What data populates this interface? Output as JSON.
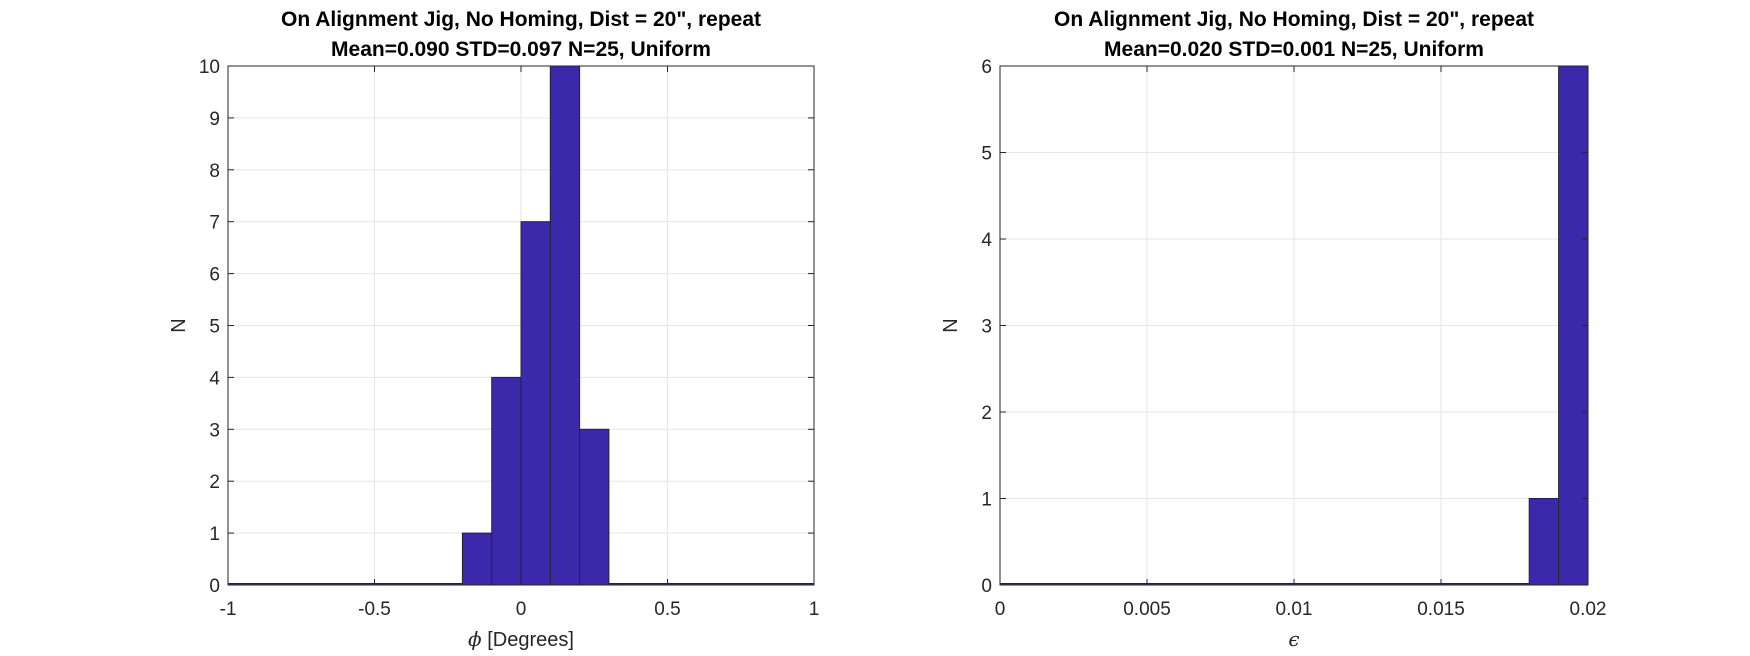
{
  "chart_data": [
    {
      "type": "histogram",
      "title": "On Alignment Jig, No Homing, Dist = 20\", repeat",
      "subtitle": "Mean=0.090 STD=0.097 N=25, Uniform",
      "xlabel_symbol": "ϕ",
      "xlabel_rest": " [Degrees]",
      "ylabel": "N",
      "xlim": [
        -1,
        1
      ],
      "ylim": [
        0,
        10
      ],
      "xticks": [
        -1,
        -0.5,
        0,
        0.5,
        1
      ],
      "xtick_labels": [
        "-1",
        "-0.5",
        "0",
        "0.5",
        "1"
      ],
      "yticks": [
        0,
        1,
        2,
        3,
        4,
        5,
        6,
        7,
        8,
        9,
        10
      ],
      "grid": true,
      "bar_color": "#3c28aa",
      "bins": [
        {
          "x0": -1.0,
          "x1": -0.2,
          "count": 0
        },
        {
          "x0": -0.2,
          "x1": -0.1,
          "count": 1
        },
        {
          "x0": -0.1,
          "x1": 0.0,
          "count": 4
        },
        {
          "x0": 0.0,
          "x1": 0.1,
          "count": 7
        },
        {
          "x0": 0.1,
          "x1": 0.2,
          "count": 10
        },
        {
          "x0": 0.2,
          "x1": 0.3,
          "count": 3
        },
        {
          "x0": 0.3,
          "x1": 1.0,
          "count": 0
        }
      ]
    },
    {
      "type": "histogram",
      "title": "On Alignment Jig, No Homing, Dist = 20\", repeat",
      "subtitle": "Mean=0.020 STD=0.001 N=25, Uniform",
      "xlabel_symbol": "ϵ",
      "xlabel_rest": "",
      "ylabel": "N",
      "xlim": [
        0,
        0.02
      ],
      "ylim": [
        0,
        6
      ],
      "xticks": [
        0,
        0.005,
        0.01,
        0.015,
        0.02
      ],
      "xtick_labels": [
        "0",
        "0.005",
        "0.01",
        "0.015",
        "0.02"
      ],
      "yticks": [
        0,
        1,
        2,
        3,
        4,
        5,
        6
      ],
      "grid": true,
      "bar_color": "#3c28aa",
      "bins": [
        {
          "x0": 0.0,
          "x1": 0.018,
          "count": 0
        },
        {
          "x0": 0.018,
          "x1": 0.019,
          "count": 1
        },
        {
          "x0": 0.019,
          "x1": 0.02,
          "count": 6
        }
      ]
    }
  ]
}
